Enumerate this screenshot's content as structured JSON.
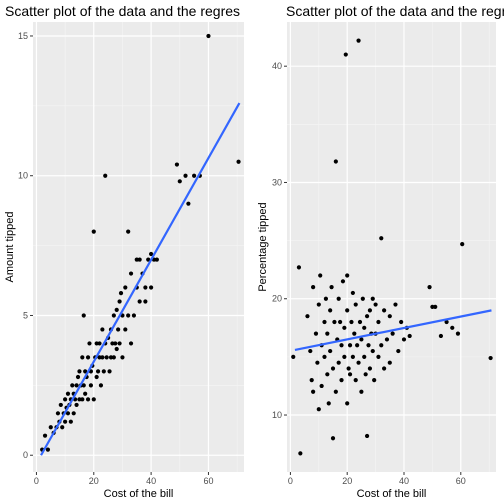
{
  "chart_data": [
    {
      "type": "scatter",
      "title": "Scatter plot of the data and the regres",
      "xlabel": "Cost of the bill",
      "ylabel": "Amount tipped",
      "xlim": [
        -1.2,
        72.4
      ],
      "ylim": [
        -0.6,
        15.5
      ],
      "xticks": [
        0,
        20,
        40,
        60
      ],
      "yticks": [
        0,
        5,
        10,
        15
      ],
      "grid": true,
      "background": "#EBEBEB",
      "point_color": "#000000",
      "line_color": "#3366FF",
      "regression_line": {
        "x": [
          1.6,
          70.8
        ],
        "y": [
          0.0,
          12.6
        ]
      },
      "points": [
        [
          2,
          0.2
        ],
        [
          3,
          0.7
        ],
        [
          4,
          0.2
        ],
        [
          5,
          1
        ],
        [
          6,
          0.8
        ],
        [
          7,
          1
        ],
        [
          7.5,
          1.5
        ],
        [
          8,
          1.2
        ],
        [
          8.5,
          1.8
        ],
        [
          9,
          1
        ],
        [
          9.5,
          1.5
        ],
        [
          10,
          2
        ],
        [
          10,
          1.2
        ],
        [
          10.5,
          1.7
        ],
        [
          11,
          1.5
        ],
        [
          11,
          2.2
        ],
        [
          11.5,
          1.8
        ],
        [
          12,
          2
        ],
        [
          12,
          1.2
        ],
        [
          12.5,
          2.5
        ],
        [
          13,
          1.5
        ],
        [
          13,
          2.2
        ],
        [
          13.5,
          2
        ],
        [
          14,
          2.5
        ],
        [
          14,
          1.8
        ],
        [
          14.5,
          2.8
        ],
        [
          15,
          2
        ],
        [
          15,
          3
        ],
        [
          15.5,
          2.5
        ],
        [
          16,
          2
        ],
        [
          16,
          3.5
        ],
        [
          16.5,
          5
        ],
        [
          16.5,
          2.5
        ],
        [
          17,
          3
        ],
        [
          17,
          2.2
        ],
        [
          17.5,
          2.8
        ],
        [
          18,
          2
        ],
        [
          18,
          3.5
        ],
        [
          18.5,
          4
        ],
        [
          19,
          3
        ],
        [
          19,
          2.5
        ],
        [
          19.5,
          3.2
        ],
        [
          20,
          8
        ],
        [
          20,
          2
        ],
        [
          20.5,
          3.5
        ],
        [
          21,
          4
        ],
        [
          21,
          2.8
        ],
        [
          21.5,
          3
        ],
        [
          22,
          3.5
        ],
        [
          22,
          4
        ],
        [
          22.5,
          2.5
        ],
        [
          23,
          3.5
        ],
        [
          23,
          4.5
        ],
        [
          23.5,
          3
        ],
        [
          24,
          10
        ],
        [
          24,
          4
        ],
        [
          24.5,
          3.5
        ],
        [
          25,
          4.2
        ],
        [
          25.5,
          3
        ],
        [
          26,
          4.5
        ],
        [
          26,
          3.5
        ],
        [
          26.5,
          4
        ],
        [
          27,
          5
        ],
        [
          27,
          3.5
        ],
        [
          27.5,
          4
        ],
        [
          28,
          5.2
        ],
        [
          28,
          3.8
        ],
        [
          28.5,
          4.5
        ],
        [
          29,
          5.5
        ],
        [
          29,
          4
        ],
        [
          29.5,
          5.8
        ],
        [
          30,
          5
        ],
        [
          30,
          3.5
        ],
        [
          31,
          4.5
        ],
        [
          31,
          6
        ],
        [
          32,
          8
        ],
        [
          32,
          5
        ],
        [
          33,
          4
        ],
        [
          33,
          6.5
        ],
        [
          34,
          5
        ],
        [
          35,
          7
        ],
        [
          35,
          6
        ],
        [
          36,
          7
        ],
        [
          36,
          5.5
        ],
        [
          37,
          6.5
        ],
        [
          38,
          6
        ],
        [
          38,
          5.5
        ],
        [
          39,
          7
        ],
        [
          40,
          7.2
        ],
        [
          40,
          6
        ],
        [
          41,
          7
        ],
        [
          42,
          7
        ],
        [
          49,
          10.4
        ],
        [
          50,
          9.8
        ],
        [
          52,
          10
        ],
        [
          53,
          9
        ],
        [
          55,
          10
        ],
        [
          57,
          10
        ],
        [
          60,
          15
        ],
        [
          70.5,
          10.5
        ]
      ]
    },
    {
      "type": "scatter",
      "title": "Scatter plot of the data and the regres",
      "xlabel": "Cost of the bill",
      "ylabel": "Percentage tipped",
      "xlim": [
        -1.2,
        72.4
      ],
      "ylim": [
        5.1,
        43.8
      ],
      "xticks": [
        0,
        20,
        40,
        60
      ],
      "yticks": [
        10,
        20,
        30,
        40
      ],
      "grid": true,
      "background": "#EBEBEB",
      "point_color": "#000000",
      "line_color": "#3366FF",
      "regression_line": {
        "x": [
          1.6,
          70.8
        ],
        "y": [
          15.6,
          19.0
        ]
      },
      "points": [
        [
          1,
          15
        ],
        [
          3,
          22.7
        ],
        [
          3.5,
          6.7
        ],
        [
          6,
          18.5
        ],
        [
          7,
          15.5
        ],
        [
          7.5,
          13
        ],
        [
          8,
          12
        ],
        [
          8,
          21
        ],
        [
          9,
          17
        ],
        [
          9.5,
          14.5
        ],
        [
          10,
          19.5
        ],
        [
          10,
          10.5
        ],
        [
          10.5,
          22
        ],
        [
          11,
          16
        ],
        [
          11,
          12.5
        ],
        [
          12,
          18
        ],
        [
          12,
          15
        ],
        [
          12.5,
          20
        ],
        [
          13,
          17
        ],
        [
          13,
          13.5
        ],
        [
          13.5,
          11
        ],
        [
          14,
          19
        ],
        [
          14,
          15.5
        ],
        [
          14.5,
          21
        ],
        [
          15,
          8
        ],
        [
          15,
          14
        ],
        [
          15.5,
          18
        ],
        [
          16,
          12
        ],
        [
          16,
          31.8
        ],
        [
          16.5,
          16.5
        ],
        [
          17,
          14.5
        ],
        [
          17,
          20
        ],
        [
          17.5,
          18
        ],
        [
          18,
          16
        ],
        [
          18,
          13
        ],
        [
          18.5,
          21.5
        ],
        [
          19,
          15
        ],
        [
          19,
          17.5
        ],
        [
          19.5,
          41
        ],
        [
          20,
          11
        ],
        [
          20,
          19
        ],
        [
          20,
          22
        ],
        [
          20.5,
          14
        ],
        [
          21,
          16
        ],
        [
          21,
          13.5
        ],
        [
          21.5,
          18
        ],
        [
          22,
          20.5
        ],
        [
          22,
          15
        ],
        [
          22.5,
          17
        ],
        [
          23,
          13
        ],
        [
          23,
          19.5
        ],
        [
          23.5,
          16
        ],
        [
          24,
          42.2
        ],
        [
          24,
          14.5
        ],
        [
          24.5,
          18
        ],
        [
          25,
          16.5
        ],
        [
          25,
          12
        ],
        [
          25.5,
          20
        ],
        [
          26,
          15
        ],
        [
          26,
          17.5
        ],
        [
          26.5,
          13.5
        ],
        [
          27,
          8.2
        ],
        [
          27,
          18.5
        ],
        [
          27.5,
          16
        ],
        [
          28,
          19
        ],
        [
          28,
          14
        ],
        [
          28.5,
          17
        ],
        [
          29,
          15.5
        ],
        [
          29,
          20
        ],
        [
          29.5,
          13
        ],
        [
          30,
          17
        ],
        [
          30,
          19.5
        ],
        [
          31,
          15
        ],
        [
          31,
          18
        ],
        [
          32,
          25.2
        ],
        [
          32,
          16
        ],
        [
          33,
          14
        ],
        [
          33,
          19
        ],
        [
          34,
          16.5
        ],
        [
          35,
          18.5
        ],
        [
          35,
          14.5
        ],
        [
          36,
          17
        ],
        [
          37,
          19.5
        ],
        [
          38,
          15.5
        ],
        [
          39,
          18
        ],
        [
          40,
          16.5
        ],
        [
          41,
          17.5
        ],
        [
          42,
          16.8
        ],
        [
          49,
          21
        ],
        [
          50,
          19.3
        ],
        [
          51,
          19.3
        ],
        [
          53,
          16.8
        ],
        [
          55,
          18
        ],
        [
          57,
          17.5
        ],
        [
          59,
          17
        ],
        [
          60.5,
          24.7
        ],
        [
          70.5,
          14.9
        ]
      ]
    }
  ]
}
